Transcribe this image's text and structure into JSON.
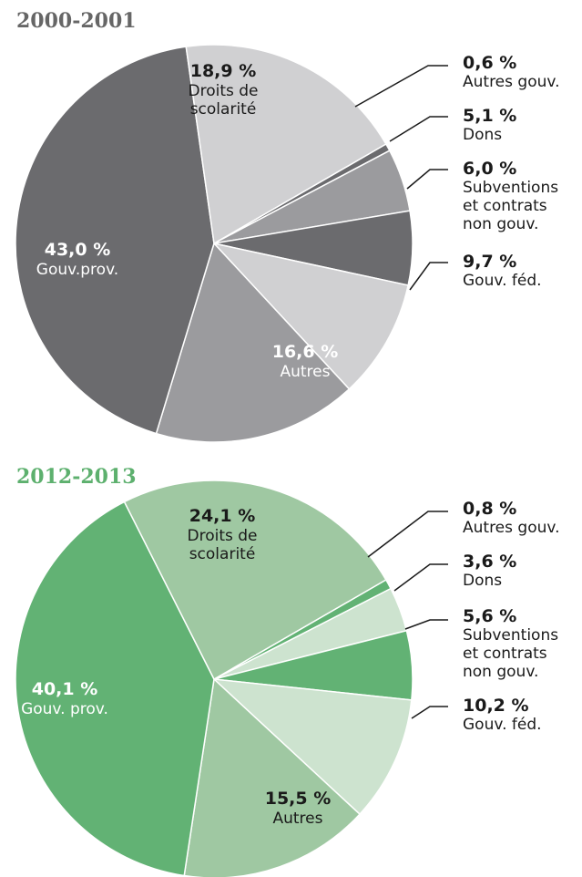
{
  "chart_data": [
    {
      "type": "pie",
      "title": "2000-2001",
      "title_color": "#666666",
      "slices": [
        {
          "label": [
            "Autres gouv."
          ],
          "value": 0.6,
          "value_label": "0,6 %",
          "color": "#6b6b6e",
          "callout": true
        },
        {
          "label": [
            "Dons"
          ],
          "value": 5.1,
          "value_label": "5,1 %",
          "color": "#9b9b9e",
          "callout": true
        },
        {
          "label": [
            "Subventions",
            "et contrats",
            "non gouv."
          ],
          "value": 6.0,
          "value_label": "6,0 %",
          "color": "#6b6b6e",
          "callout": true
        },
        {
          "label": [
            "Gouv. féd."
          ],
          "value": 9.7,
          "value_label": "9,7 %",
          "color": "#d0d0d2",
          "callout": true
        },
        {
          "label": [
            "Autres"
          ],
          "value": 16.6,
          "value_label": "16,6 %",
          "color": "#9b9b9e",
          "callout": false,
          "text_color": "#ffffff"
        },
        {
          "label": [
            "Gouv.prov."
          ],
          "value": 43.0,
          "value_label": "43,0 %",
          "color": "#6b6b6e",
          "callout": false,
          "text_color": "#ffffff"
        },
        {
          "label": [
            "Droits de",
            "scolarité"
          ],
          "value": 18.9,
          "value_label": "18,9 %",
          "color": "#d0d0d2",
          "callout": false,
          "text_color": "#1a1a1a"
        }
      ]
    },
    {
      "type": "pie",
      "title": "2012-2013",
      "title_color": "#5db06e",
      "slices": [
        {
          "label": [
            "Autres gouv."
          ],
          "value": 0.8,
          "value_label": "0,8 %",
          "color": "#62b274",
          "callout": true
        },
        {
          "label": [
            "Dons"
          ],
          "value": 3.6,
          "value_label": "3,6 %",
          "color": "#cde3cf",
          "callout": true
        },
        {
          "label": [
            "Subventions",
            "et contrats",
            "non gouv."
          ],
          "value": 5.6,
          "value_label": "5,6 %",
          "color": "#62b274",
          "callout": true
        },
        {
          "label": [
            "Gouv. féd."
          ],
          "value": 10.2,
          "value_label": "10,2 %",
          "color": "#cde3cf",
          "callout": true
        },
        {
          "label": [
            "Autres"
          ],
          "value": 15.5,
          "value_label": "15,5 %",
          "color": "#9fc8a2",
          "callout": false,
          "text_color": "#1a1a1a"
        },
        {
          "label": [
            "Gouv. prov."
          ],
          "value": 40.1,
          "value_label": "40,1 %",
          "color": "#62b274",
          "callout": false,
          "text_color": "#ffffff"
        },
        {
          "label": [
            "Droits de",
            "scolarité"
          ],
          "value": 24.1,
          "value_label": "24,1 %",
          "color": "#9fc8a2",
          "callout": false,
          "text_color": "#1a1a1a"
        }
      ]
    }
  ]
}
